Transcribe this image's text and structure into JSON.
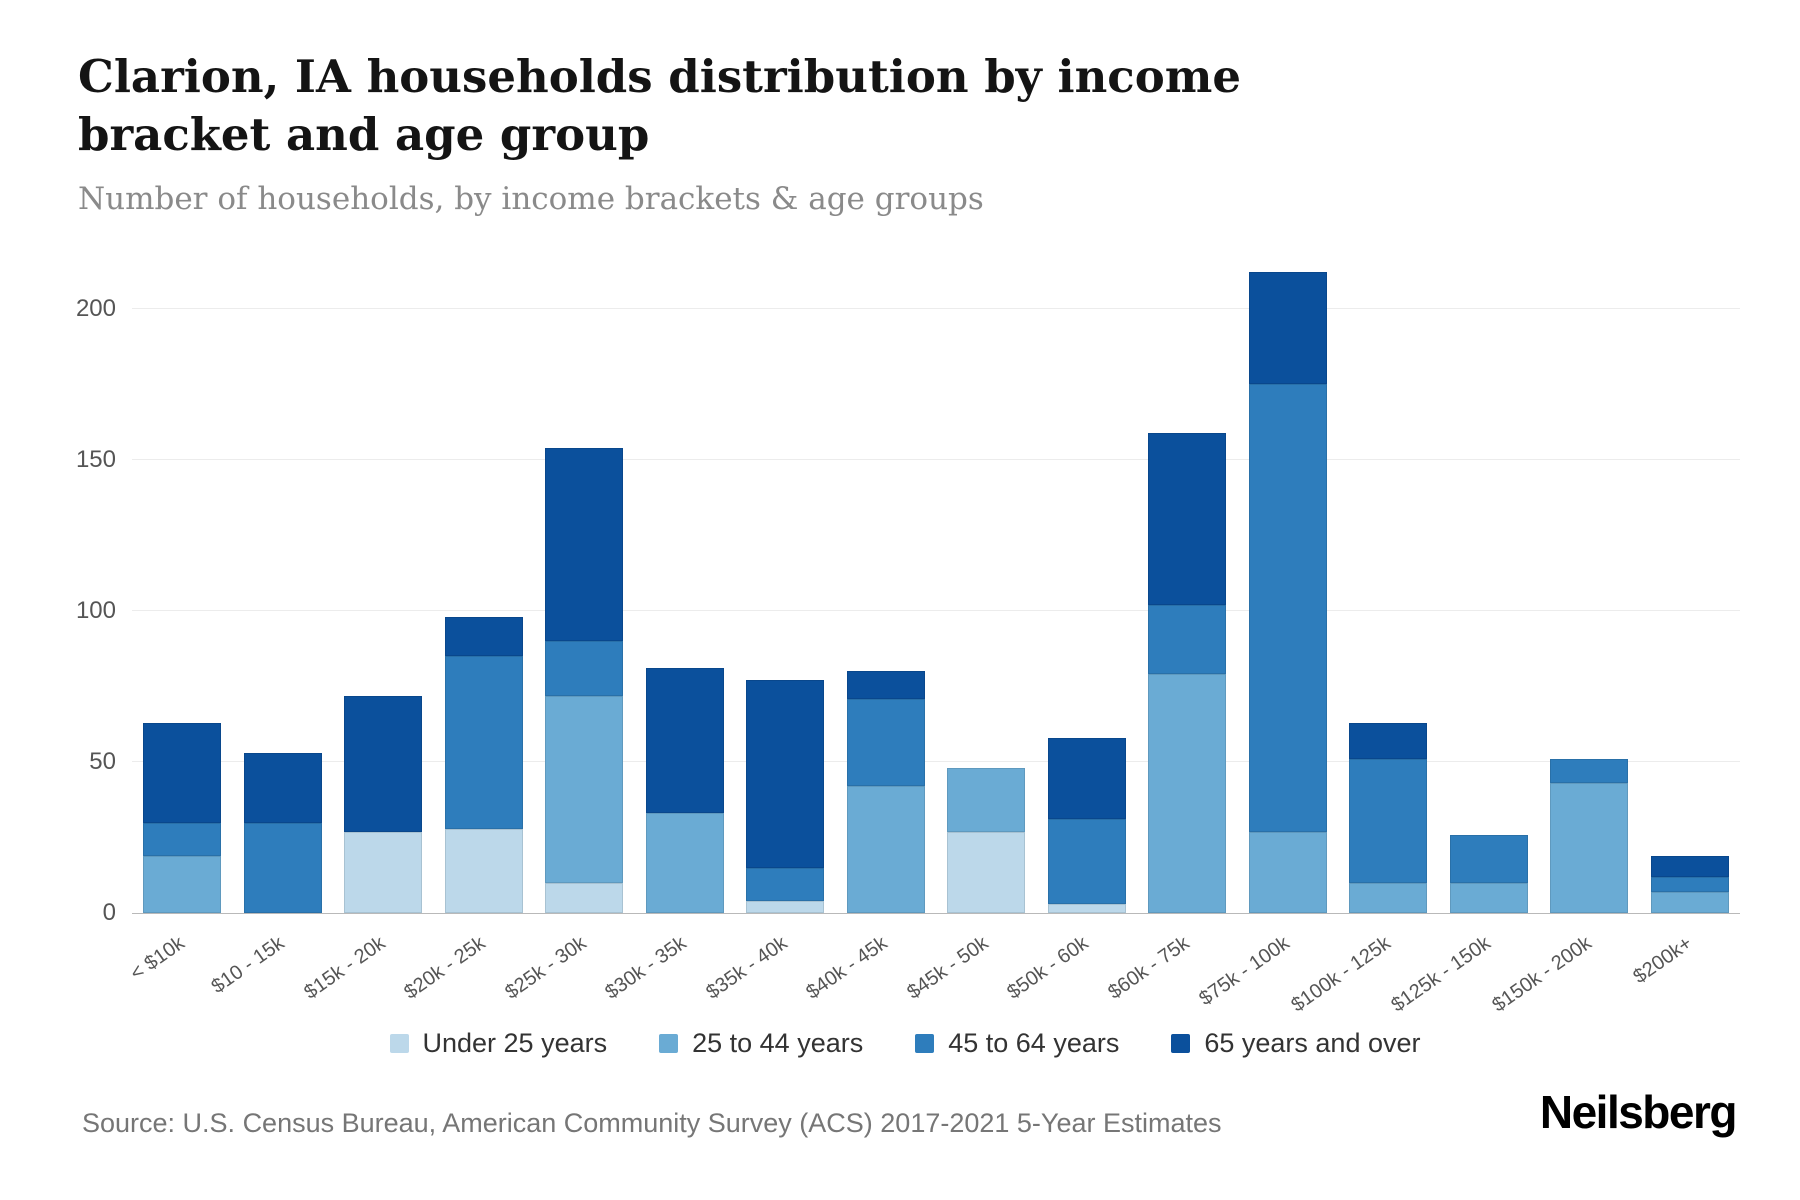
{
  "header": {
    "title": "Clarion, IA households distribution by income bracket and age group",
    "subtitle": "Number of households, by income brackets & age groups"
  },
  "footer": {
    "source": "Source: U.S. Census Bureau, American Community Survey (ACS) 2017-2021 5-Year Estimates",
    "brand": "Neilsberg"
  },
  "colors": {
    "background": "#ffffff",
    "gridline": "#ececec",
    "axis_line": "#b9b9b9",
    "axis_text": "#555555",
    "title_text": "#141414",
    "subtitle_text": "#8a8a8a"
  },
  "chart_data": {
    "type": "bar",
    "stacked": true,
    "title": "Clarion, IA households distribution by income bracket and age group",
    "subtitle": "Number of households, by income brackets & age groups",
    "xlabel": "",
    "ylabel": "",
    "ylim": [
      0,
      215
    ],
    "yticks": [
      0,
      50,
      100,
      150,
      200
    ],
    "grid": true,
    "legend_position": "bottom",
    "categories": [
      "< $10k",
      "$10 - 15k",
      "$15k - 20k",
      "$20k - 25k",
      "$25k - 30k",
      "$30k - 35k",
      "$35k - 40k",
      "$40k - 45k",
      "$45k - 50k",
      "$50k - 60k",
      "$60k - 75k",
      "$75k - 100k",
      "$100k - 125k",
      "$125k - 150k",
      "$150k - 200k",
      "$200k+"
    ],
    "series": [
      {
        "name": "Under 25 years",
        "color": "#bcd8ea",
        "values": [
          0,
          0,
          27,
          28,
          10,
          0,
          4,
          0,
          27,
          3,
          0,
          0,
          0,
          0,
          0,
          0
        ]
      },
      {
        "name": "25 to 44 years",
        "color": "#6aabd4",
        "values": [
          19,
          0,
          0,
          0,
          62,
          33,
          0,
          42,
          21,
          0,
          79,
          27,
          10,
          10,
          43,
          7
        ]
      },
      {
        "name": "45 to 64 years",
        "color": "#2e7dbc",
        "values": [
          11,
          30,
          0,
          57,
          18,
          0,
          11,
          29,
          0,
          28,
          23,
          148,
          41,
          16,
          8,
          5
        ]
      },
      {
        "name": "65 years and over",
        "color": "#0b509c",
        "values": [
          33,
          23,
          45,
          13,
          64,
          48,
          62,
          9,
          0,
          27,
          57,
          37,
          12,
          0,
          0,
          7
        ]
      }
    ],
    "totals": [
      63,
      53,
      72,
      98,
      154,
      81,
      77,
      80,
      48,
      58,
      159,
      212,
      63,
      26,
      51,
      19
    ]
  }
}
